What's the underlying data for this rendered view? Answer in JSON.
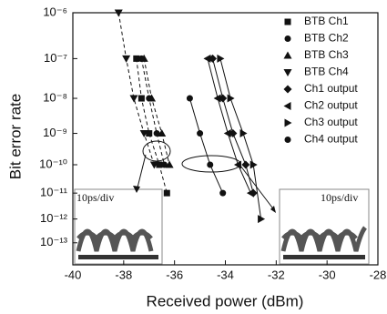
{
  "chart_data": {
    "type": "line",
    "xlabel": "Received power (dBm)",
    "ylabel": "Bit error rate",
    "xlim": [
      -40,
      -28
    ],
    "xticks": [
      -40,
      -38,
      -36,
      -34,
      -32,
      -30,
      -28
    ],
    "ylim": [
      1e-14,
      1e-06
    ],
    "yscale": "-log(-log)",
    "yticks": [
      {
        "value": 1e-06,
        "label": "10⁻⁶"
      },
      {
        "value": 1e-07,
        "label": "10⁻⁷"
      },
      {
        "value": 1e-08,
        "label": "10⁻⁸"
      },
      {
        "value": 1e-09,
        "label": "10⁻⁹"
      },
      {
        "value": 1e-10,
        "label": "10⁻¹⁰"
      },
      {
        "value": 1e-11,
        "label": "10⁻¹¹"
      },
      {
        "value": 1e-12,
        "label": "10⁻¹²"
      },
      {
        "value": 1e-13,
        "label": "10⁻¹³"
      }
    ],
    "color": "#111",
    "legend": "top-right",
    "annotations": [
      "10ps/div",
      "10ps/div"
    ],
    "series": [
      {
        "name": "BTB Ch1",
        "marker": "square",
        "line_style": "dashed",
        "x": [
          -37.5,
          -37.3,
          -37.0,
          -36.6,
          -36.3
        ],
        "values": [
          1e-07,
          1e-08,
          1e-09,
          1e-10,
          1e-11
        ]
      },
      {
        "name": "BTB Ch2",
        "marker": "circle",
        "line_style": "dashed",
        "x": [
          -37.3,
          -37.0,
          -36.7,
          -36.4
        ],
        "values": [
          1e-07,
          1e-08,
          1e-09,
          1e-10
        ]
      },
      {
        "name": "BTB Ch3",
        "marker": "triangle-up",
        "line_style": "dashed",
        "x": [
          -37.2,
          -36.9,
          -36.5,
          -36.2
        ],
        "values": [
          1e-07,
          1e-08,
          1e-09,
          1e-10
        ]
      },
      {
        "name": "BTB Ch4",
        "marker": "triangle-down",
        "line_style": "dashed",
        "x": [
          -38.2,
          -37.9,
          -37.6,
          -37.2,
          -36.8
        ],
        "values": [
          1e-06,
          1e-07,
          1e-08,
          1e-09,
          1e-10
        ]
      },
      {
        "name": "Ch1 output",
        "marker": "diamond",
        "line_style": "solid",
        "x": [
          -34.5,
          -34.1,
          -33.7,
          -33.2,
          -32.9
        ],
        "values": [
          1e-07,
          1e-08,
          1e-09,
          1e-10,
          1e-11
        ]
      },
      {
        "name": "Ch2 output",
        "marker": "triangle-left",
        "line_style": "solid",
        "x": [
          -34.7,
          -34.3,
          -33.9,
          -33.5,
          -33.0
        ],
        "values": [
          1e-07,
          1e-08,
          1e-09,
          1e-10,
          1e-11
        ]
      },
      {
        "name": "Ch3 output",
        "marker": "triangle-right",
        "line_style": "solid",
        "x": [
          -34.2,
          -33.8,
          -33.3,
          -32.9,
          -32.6
        ],
        "values": [
          1e-07,
          1e-08,
          1e-09,
          1e-10,
          1e-12
        ]
      },
      {
        "name": "Ch4 output",
        "marker": "circle",
        "line_style": "solid",
        "x": [
          -35.4,
          -35.0,
          -34.6,
          -34.1
        ],
        "values": [
          1e-08,
          1e-09,
          1e-10,
          1e-11
        ]
      }
    ]
  }
}
